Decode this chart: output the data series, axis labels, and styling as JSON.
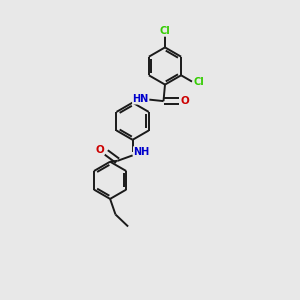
{
  "background_color": "#e8e8e8",
  "bond_color": "#1a1a1a",
  "atom_colors": {
    "Cl": "#33cc00",
    "N": "#0000cc",
    "O": "#cc0000",
    "C": "#1a1a1a"
  },
  "figsize": [
    3.0,
    3.0
  ],
  "dpi": 100,
  "lw": 1.4,
  "r": 0.62
}
